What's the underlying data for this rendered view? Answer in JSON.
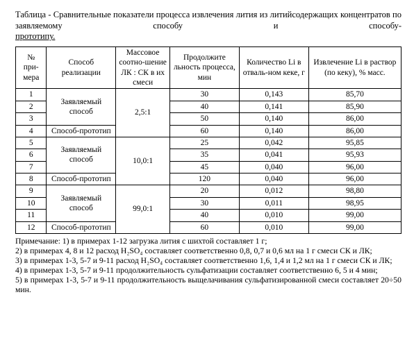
{
  "title": {
    "line1": "Таблица - Сравнительные показатели процесса извлечения лития из литийсодержащих концентратов по заявляемому способу и способу-",
    "line2": "прототипу."
  },
  "columns": [
    "№ при-мера",
    "Способ реализации",
    "Массовое соотно-шение ЛК : СК в их смеси",
    "Продолжите льность процесса, мин",
    "Количество Li в отваль-ном кеке, г",
    "Извлечение Li в раствор (по кеку), % масс."
  ],
  "groups": [
    {
      "ratio": "2,5:1",
      "method_claimed": "Заявляемый способ",
      "method_proto": "Способ-прототип",
      "claimed": [
        {
          "n": "1",
          "dur": "30",
          "li": "0,143",
          "ext": "85,70"
        },
        {
          "n": "2",
          "dur": "40",
          "li": "0,141",
          "ext": "85,90"
        },
        {
          "n": "3",
          "dur": "50",
          "li": "0,140",
          "ext": "86,00"
        }
      ],
      "proto": {
        "n": "4",
        "dur": "60",
        "li": "0,140",
        "ext": "86,00"
      }
    },
    {
      "ratio": "10,0:1",
      "method_claimed": "Заявляемый способ",
      "method_proto": "Способ-прототип",
      "claimed": [
        {
          "n": "5",
          "dur": "25",
          "li": "0,042",
          "ext": "95,85"
        },
        {
          "n": "6",
          "dur": "35",
          "li": "0,041",
          "ext": "95,93"
        },
        {
          "n": "7",
          "dur": "45",
          "li": "0,040",
          "ext": "96,00"
        }
      ],
      "proto": {
        "n": "8",
        "dur": "120",
        "li": "0,040",
        "ext": "96,00"
      }
    },
    {
      "ratio": "99,0:1",
      "method_claimed": "Заявляемый способ",
      "method_proto": "Способ-прототип",
      "claimed": [
        {
          "n": "9",
          "dur": "20",
          "li": "0,012",
          "ext": "98,80"
        },
        {
          "n": "10",
          "dur": "30",
          "li": "0,011",
          "ext": "98,95"
        },
        {
          "n": "11",
          "dur": "40",
          "li": "0,010",
          "ext": "99,00"
        }
      ],
      "proto": {
        "n": "12",
        "dur": "60",
        "li": "0,010",
        "ext": "99,00"
      }
    }
  ],
  "notes": [
    "Примечание: 1) в примерах 1-12 загрузка лития с шихтой составляет 1 г;",
    "2) в примерах 4, 8 и 12 расход H₂SO₄ составляет соответственно 0,8, 0,7 и 0,6 мл на 1 г смеси СК и ЛК;",
    "3) в примерах 1-3, 5-7 и 9-11 расход H₂SO₄ составляет соответственно 1,6, 1,4 и 1,2 мл на 1 г смеси СК и ЛК;",
    "4) в примерах 1-3, 5-7 и 9-11 продолжительность сульфатизации составляет соответственно 6, 5 и 4 мин;",
    "5) в примерах 1-3, 5-7 и 9-11 продолжительность выщелачивания сульфатизированной смеси составляет 20÷50 мин."
  ],
  "col_widths": [
    "8%",
    "18%",
    "14%",
    "18%",
    "18%",
    "24%"
  ]
}
